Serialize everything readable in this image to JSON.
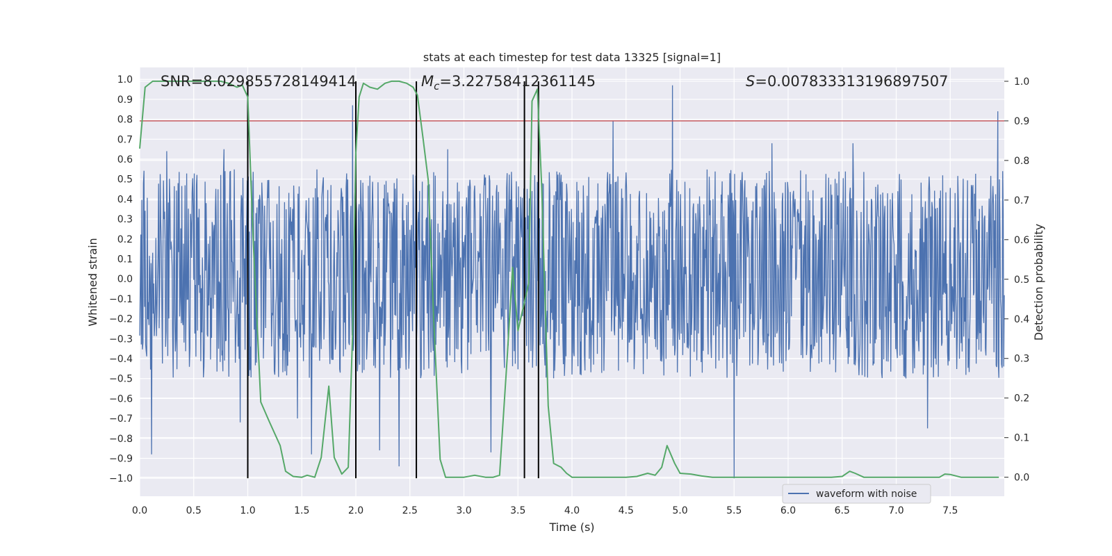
{
  "chart_data": {
    "type": "line",
    "title": "stats at each timestep for test data 13325 [signal=1]",
    "xlabel": "Time (s)",
    "ylabel_left": "Whitened strain",
    "ylabel_right": "Detection probability",
    "xlim": [
      0,
      8
    ],
    "ylim_left": [
      -1.09,
      1.06
    ],
    "ylim_right": [
      -0.048,
      1.035
    ],
    "x_ticks": [
      0.0,
      0.5,
      1.0,
      1.5,
      2.0,
      2.5,
      3.0,
      3.5,
      4.0,
      4.5,
      5.0,
      5.5,
      6.0,
      6.5,
      7.0,
      7.5
    ],
    "x_tick_labels": [
      "0.0",
      "0.5",
      "1.0",
      "1.5",
      "2.0",
      "2.5",
      "3.0",
      "3.5",
      "4.0",
      "4.5",
      "5.0",
      "5.5",
      "6.0",
      "6.5",
      "7.0",
      "7.5"
    ],
    "y_left_ticks": [
      1.0,
      0.9,
      0.8,
      0.7,
      0.6,
      0.5,
      0.4,
      0.3,
      0.2,
      0.1,
      0.0,
      -0.1,
      -0.2,
      -0.3,
      -0.4,
      -0.5,
      -0.6,
      -0.7,
      -0.8,
      -0.9,
      -1.0
    ],
    "y_left_tick_labels": [
      "1.0",
      "0.9",
      "0.8",
      "0.7",
      "0.6",
      "0.5",
      "0.4",
      "0.3",
      "0.2",
      "0.1",
      "0.0",
      "−0.1",
      "−0.2",
      "−0.3",
      "−0.4",
      "−0.5",
      "−0.6",
      "−0.7",
      "−0.8",
      "−0.9",
      "−1.0"
    ],
    "y_right_ticks": [
      1.0,
      0.9,
      0.8,
      0.7,
      0.6,
      0.5,
      0.4,
      0.3,
      0.2,
      0.1,
      0.0
    ],
    "y_right_tick_labels": [
      "1.0",
      "0.9",
      "0.8",
      "0.7",
      "0.6",
      "0.5",
      "0.4",
      "0.3",
      "0.2",
      "0.1",
      "0.0"
    ],
    "grid": true,
    "legend_position": "lower-right",
    "series": [
      {
        "name": "waveform with noise",
        "axis": "left",
        "color": "#4c72b0",
        "description": "dense whitened strain time series",
        "envelope": {
          "typical_max": 0.55,
          "typical_min": -0.5
        },
        "spikes": [
          {
            "x": 0.11,
            "y": -0.88
          },
          {
            "x": 0.25,
            "y": 0.64
          },
          {
            "x": 0.78,
            "y": 0.65
          },
          {
            "x": 0.93,
            "y": -0.72
          },
          {
            "x": 1.46,
            "y": -0.7
          },
          {
            "x": 1.59,
            "y": -0.88
          },
          {
            "x": 1.97,
            "y": 0.87
          },
          {
            "x": 2.22,
            "y": -0.86
          },
          {
            "x": 2.4,
            "y": -0.94
          },
          {
            "x": 2.85,
            "y": 0.65
          },
          {
            "x": 3.25,
            "y": -0.87
          },
          {
            "x": 4.38,
            "y": 0.79
          },
          {
            "x": 4.93,
            "y": 0.97
          },
          {
            "x": 5.5,
            "y": -1.0
          },
          {
            "x": 5.85,
            "y": 0.68
          },
          {
            "x": 6.6,
            "y": 0.68
          },
          {
            "x": 7.29,
            "y": -0.75
          },
          {
            "x": 7.94,
            "y": 0.84
          }
        ]
      },
      {
        "name": "",
        "axis": "right",
        "color": "#55a868",
        "x": [
          0.0,
          0.05,
          0.12,
          0.2,
          0.3,
          0.4,
          0.5,
          0.6,
          0.7,
          0.75,
          0.82,
          0.9,
          0.95,
          1.0,
          1.05,
          1.12,
          1.2,
          1.3,
          1.35,
          1.42,
          1.5,
          1.55,
          1.62,
          1.68,
          1.75,
          1.8,
          1.87,
          1.93,
          1.97,
          2.0,
          2.03,
          2.07,
          2.13,
          2.2,
          2.27,
          2.33,
          2.4,
          2.47,
          2.53,
          2.57,
          2.62,
          2.67,
          2.72,
          2.78,
          2.83,
          2.9,
          3.0,
          3.1,
          3.2,
          3.27,
          3.33,
          3.4,
          3.45,
          3.5,
          3.55,
          3.6,
          3.63,
          3.68,
          3.72,
          3.78,
          3.83,
          3.9,
          3.95,
          4.0,
          4.1,
          4.2,
          4.3,
          4.4,
          4.5,
          4.6,
          4.7,
          4.77,
          4.83,
          4.88,
          4.95,
          5.0,
          5.1,
          5.2,
          5.3,
          5.4,
          5.5,
          5.6,
          5.7,
          5.8,
          5.9,
          6.0,
          6.1,
          6.2,
          6.3,
          6.4,
          6.5,
          6.57,
          6.62,
          6.7,
          6.8,
          6.9,
          7.0,
          7.1,
          7.2,
          7.3,
          7.4,
          7.45,
          7.5,
          7.6,
          7.7,
          7.8,
          7.95
        ],
        "y": [
          0.83,
          0.985,
          1.0,
          1.0,
          1.0,
          1.0,
          1.0,
          1.0,
          1.0,
          1.0,
          0.995,
          0.985,
          0.99,
          0.96,
          0.6,
          0.19,
          0.14,
          0.08,
          0.015,
          0.002,
          0.0,
          0.005,
          0.0,
          0.05,
          0.23,
          0.05,
          0.008,
          0.025,
          0.36,
          0.82,
          0.96,
          0.995,
          0.985,
          0.98,
          0.995,
          1.0,
          1.0,
          0.995,
          0.985,
          0.965,
          0.86,
          0.75,
          0.4,
          0.045,
          0.0,
          0.0,
          0.0,
          0.005,
          0.0,
          0.0,
          0.005,
          0.3,
          0.53,
          0.37,
          0.43,
          0.49,
          0.95,
          0.98,
          0.73,
          0.18,
          0.035,
          0.025,
          0.01,
          0.0,
          0.0,
          0.0,
          0.0,
          0.0,
          0.0,
          0.002,
          0.01,
          0.005,
          0.025,
          0.08,
          0.035,
          0.01,
          0.008,
          0.003,
          0.0,
          0.0,
          0.0,
          0.0,
          0.0,
          0.0,
          0.0,
          0.0,
          0.0,
          0.0,
          0.0,
          0.0,
          0.002,
          0.015,
          0.01,
          0.0,
          0.0,
          0.0,
          0.0,
          0.0,
          0.0,
          0.0,
          0.0,
          0.008,
          0.007,
          0.0,
          0.0,
          0.0,
          0.0
        ]
      }
    ],
    "threshold": {
      "axis": "right",
      "value": 0.9,
      "color": "#c44e52"
    },
    "event_markers": {
      "color": "#000000",
      "x": [
        1.0,
        2.0,
        2.56,
        3.56,
        3.69
      ],
      "y_from": -1.0,
      "y_to_right_axis": 1.0
    },
    "annotations": {
      "snr": "SNR=8.029855728149414",
      "mc_symbol": "M",
      "mc_subscript": "c",
      "mc_value": "=3.22758412361145",
      "s_symbol": "S",
      "s_value": "=0.007833313196897507"
    },
    "colors": {
      "plot_background": "#eaeaf2",
      "grid": "#ffffff",
      "text": "#262626"
    }
  }
}
